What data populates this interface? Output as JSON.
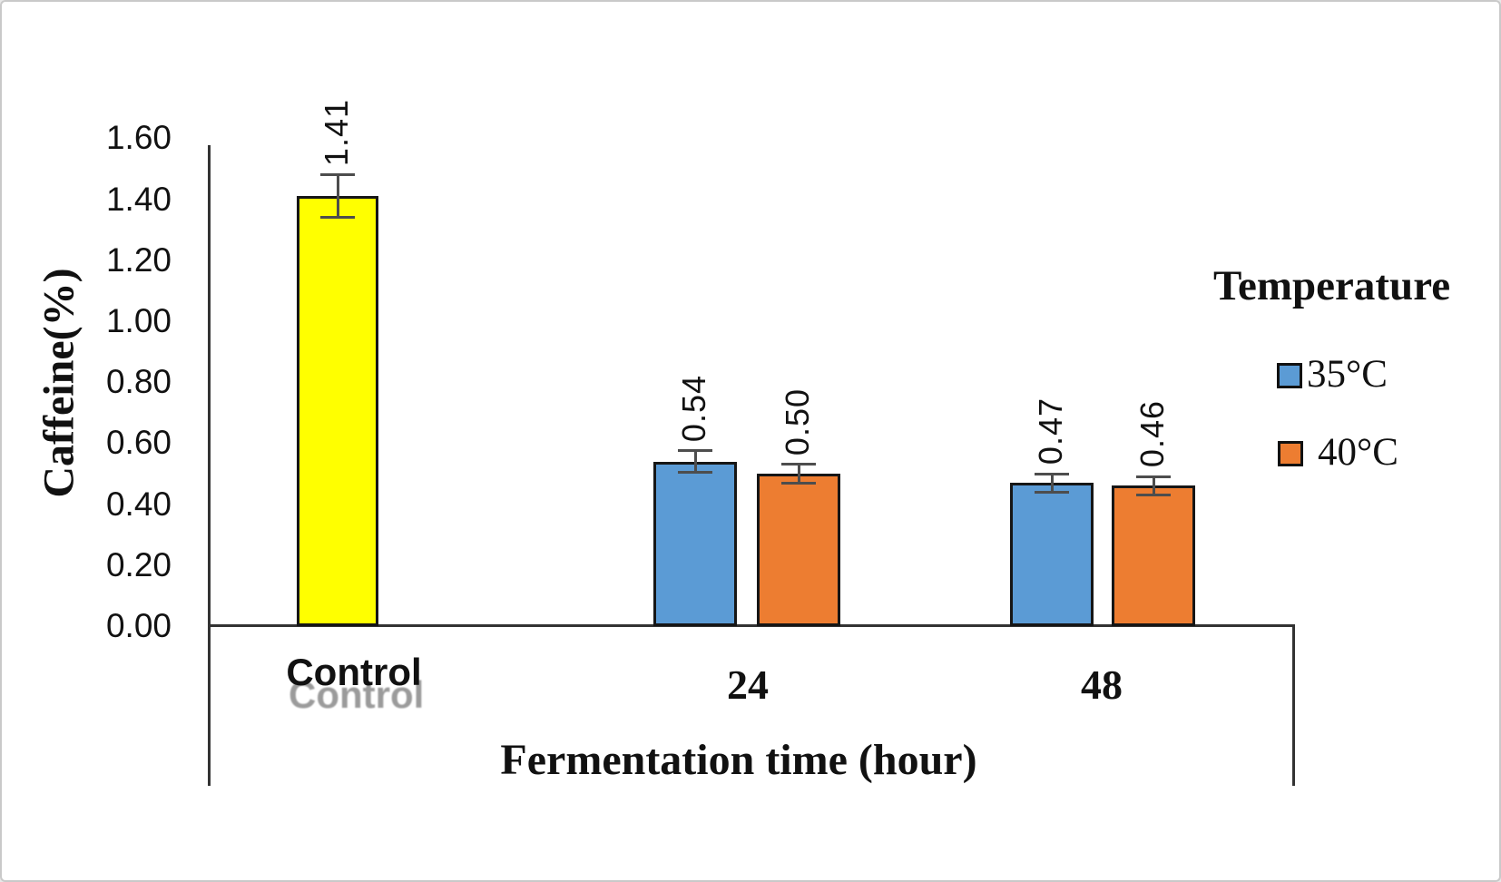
{
  "chart_data": {
    "type": "bar",
    "title": "",
    "ylabel": "Caffeine(%)",
    "xlabel": "Fermentation time (hour)",
    "ylim": [
      0.0,
      1.6
    ],
    "ytick_step": 0.2,
    "yticks": [
      "0.00",
      "0.20",
      "0.40",
      "0.60",
      "0.80",
      "1.00",
      "1.20",
      "1.40",
      "1.60"
    ],
    "grid": "off",
    "categories": [
      "Control",
      "24",
      "48"
    ],
    "category_ghost": {
      "label": "Control",
      "color": "#9b9b9b"
    },
    "legend": {
      "title": "Temperature",
      "position": "right",
      "entries": [
        {
          "label": "35°C",
          "color": "#5B9BD5"
        },
        {
          "label": "40°C",
          "color": "#ED7D31"
        }
      ]
    },
    "bars": [
      {
        "category": "Control",
        "series": "Control",
        "value": 1.41,
        "display": "1.41",
        "error": 0.07,
        "color": "#FFFF00"
      },
      {
        "category": "24",
        "series": "35°C",
        "value": 0.54,
        "display": "0.54",
        "error": 0.035,
        "color": "#5B9BD5"
      },
      {
        "category": "24",
        "series": "40°C",
        "value": 0.5,
        "display": "0.50",
        "error": 0.03,
        "color": "#ED7D31"
      },
      {
        "category": "48",
        "series": "35°C",
        "value": 0.47,
        "display": "0.47",
        "error": 0.03,
        "color": "#5B9BD5"
      },
      {
        "category": "48",
        "series": "40°C",
        "value": 0.46,
        "display": "0.46",
        "error": 0.03,
        "color": "#ED7D31"
      }
    ]
  },
  "colors": {
    "axis": "#333333",
    "error_bar": "#4d4d4d",
    "bar_border": "#161616",
    "frame_border": "#c9c9c9",
    "text": "#111111"
  }
}
